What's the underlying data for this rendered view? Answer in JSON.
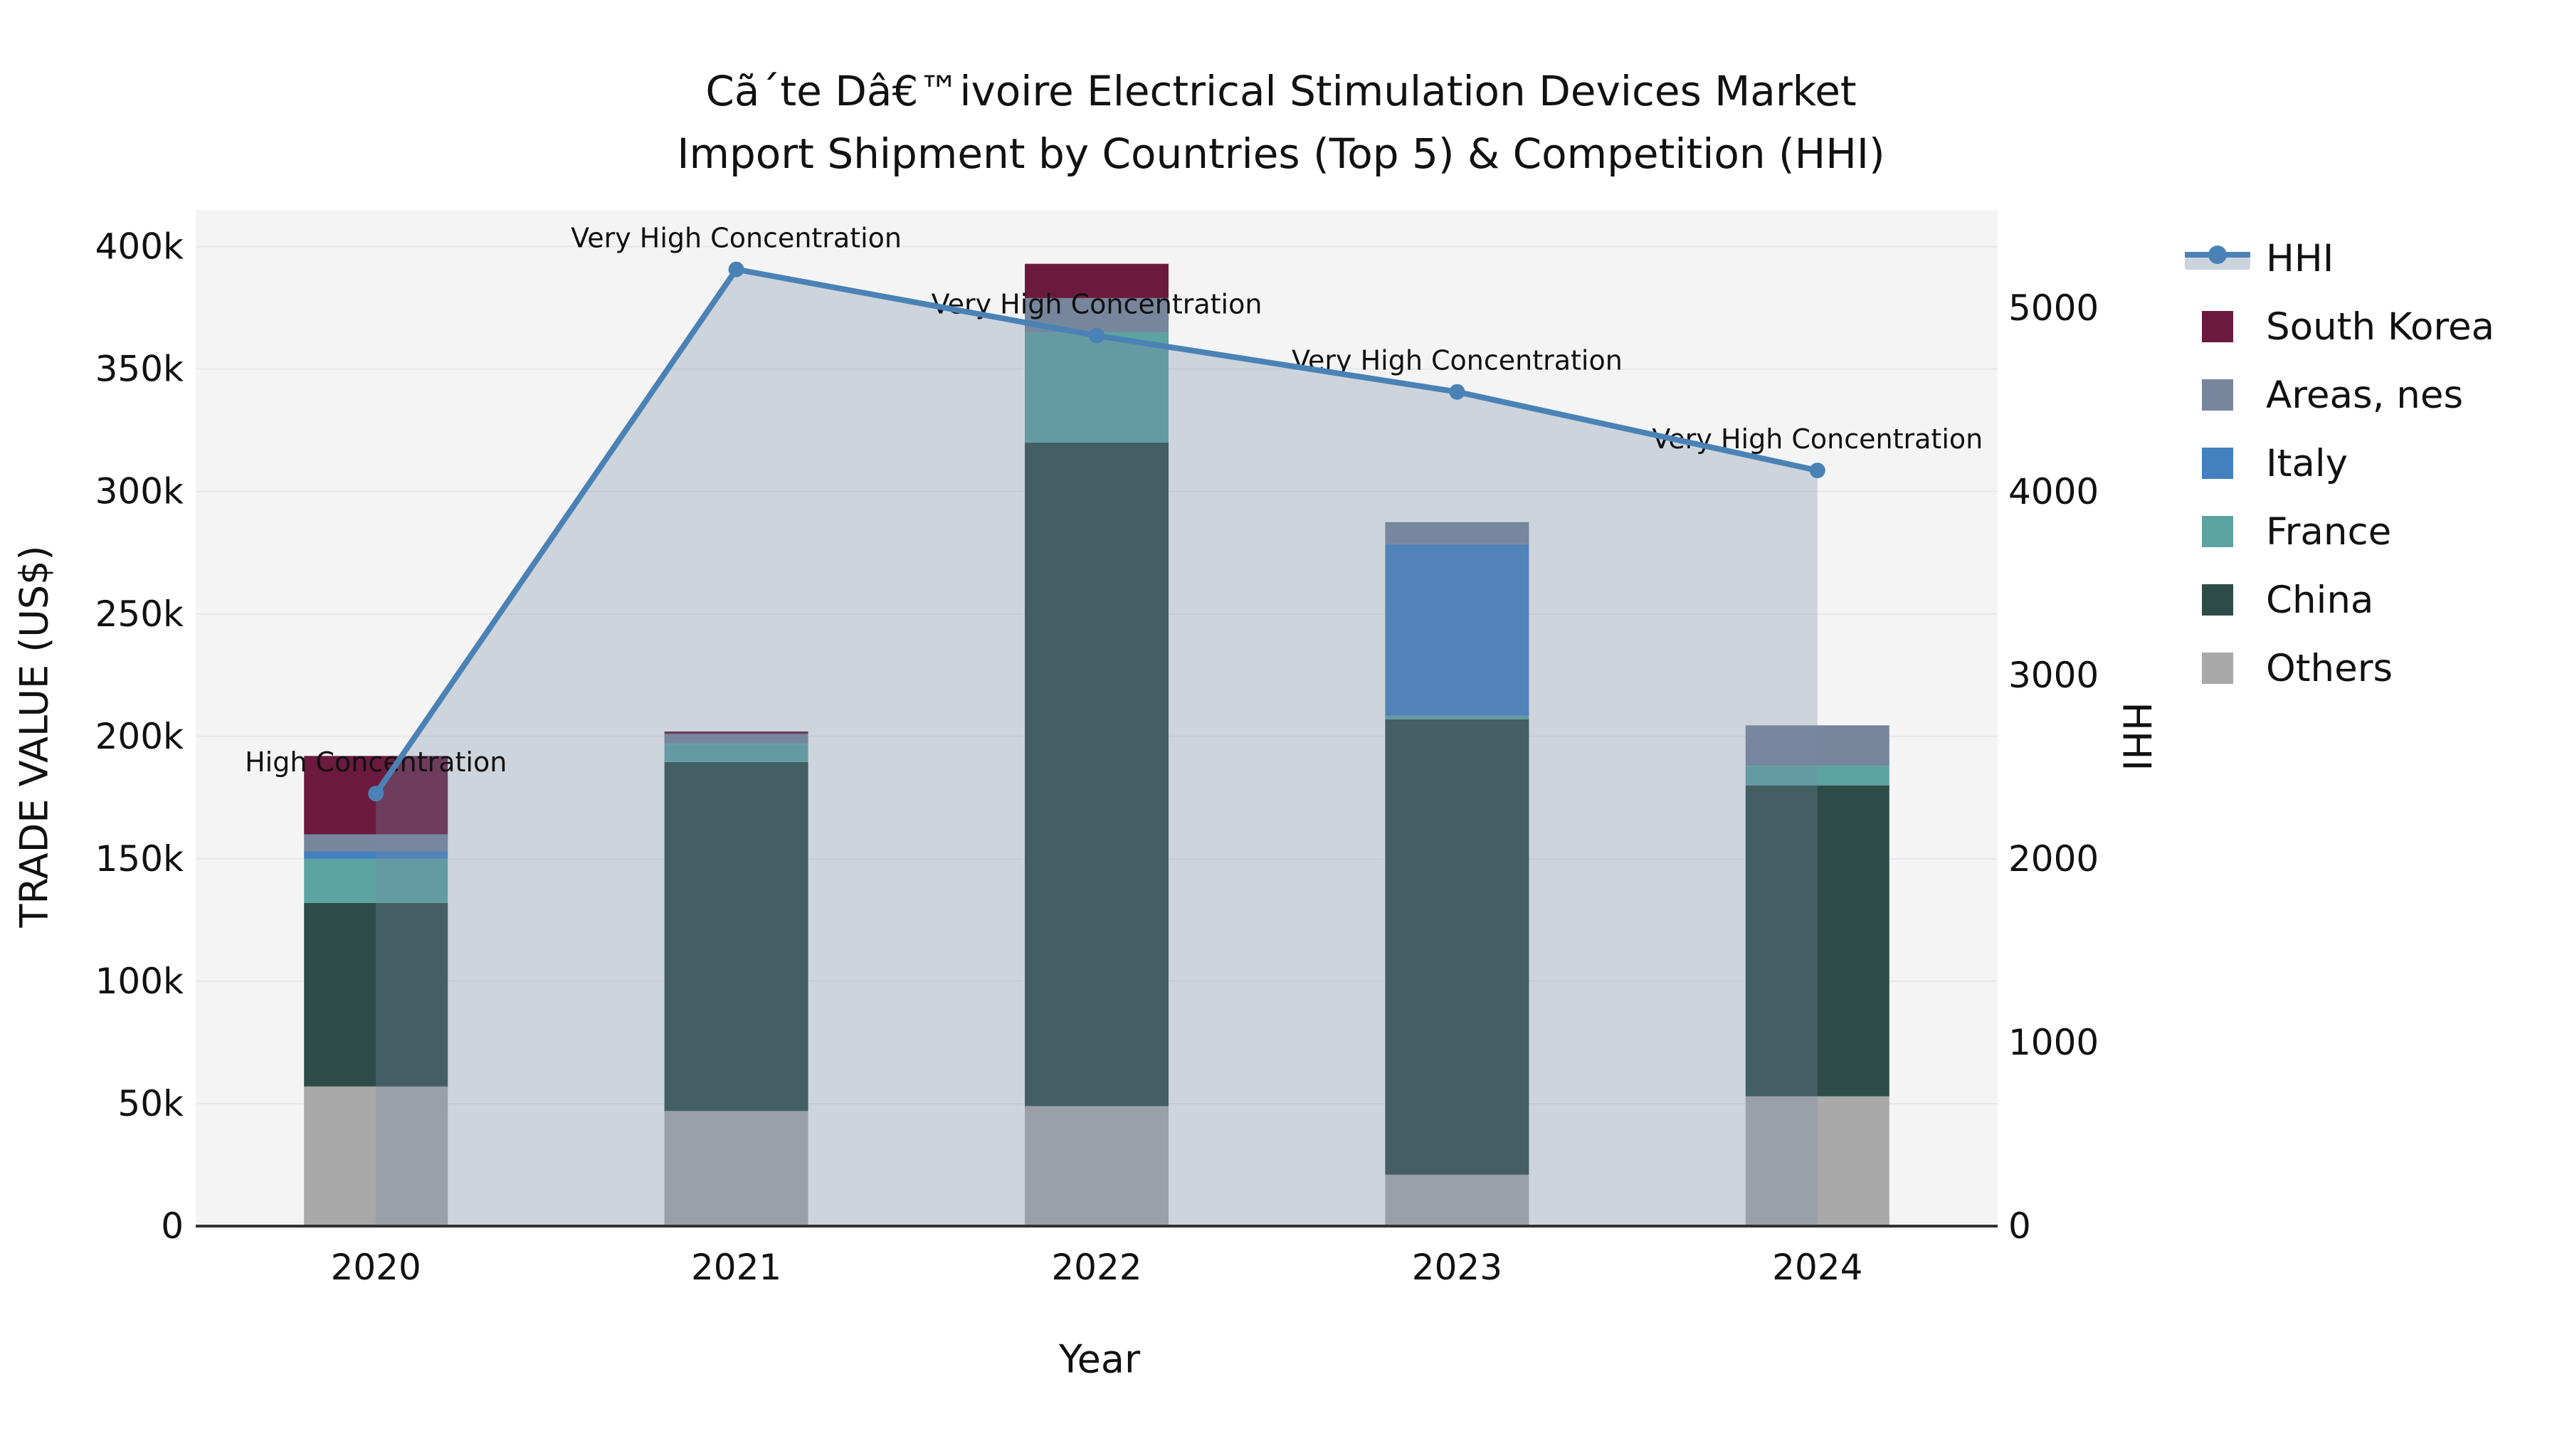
{
  "title": {
    "line1": "Cã´te Dâ€™ivoire Electrical Stimulation Devices Market",
    "line2": "Import Shipment by Countries (Top 5) & Competition (HHI)"
  },
  "chart_data": {
    "type": "bar",
    "subtype": "stacked-bars-with-line-and-area",
    "categories": [
      "2020",
      "2021",
      "2022",
      "2023",
      "2024"
    ],
    "bar_series": [
      {
        "name": "Others",
        "color": "#a9a9a9",
        "values": [
          57000,
          47000,
          49000,
          21000,
          53000
        ]
      },
      {
        "name": "China",
        "color": "#2d4c48",
        "values": [
          75000,
          142500,
          271000,
          186000,
          127000
        ]
      },
      {
        "name": "France",
        "color": "#5ca3a2",
        "values": [
          18000,
          7500,
          45000,
          1500,
          8000
        ]
      },
      {
        "name": "Italy",
        "color": "#4280c0",
        "values": [
          3000,
          0,
          0,
          70000,
          0
        ]
      },
      {
        "name": "Areas, nes",
        "color": "#76869c",
        "values": [
          7000,
          4000,
          14000,
          9000,
          16500
        ]
      },
      {
        "name": "South Korea",
        "color": "#6b1a3e",
        "values": [
          32000,
          1000,
          14000,
          0,
          0
        ]
      }
    ],
    "bar_totals": [
      192000,
      202000,
      393000,
      287500,
      204500
    ],
    "line_series": {
      "name": "HHI",
      "color": "#4a82b6",
      "area_fill": "rgba(120,138,165,0.30)",
      "values": [
        2356,
        5211,
        4850,
        4544,
        4116
      ]
    },
    "annotations": [
      "High Concentration",
      "Very High Concentration",
      "Very High Concentration",
      "Very High Concentration",
      "Very High Concentration"
    ],
    "axes": {
      "left": {
        "title": "TRADE VALUE (US$)",
        "range": [
          0,
          415000
        ],
        "ticks": [
          0,
          50000,
          100000,
          150000,
          200000,
          250000,
          300000,
          350000,
          400000
        ],
        "tick_labels": [
          "0",
          "50k",
          "100k",
          "150k",
          "200k",
          "250k",
          "300k",
          "350k",
          "400k"
        ]
      },
      "right": {
        "title": "HHI",
        "range": [
          0,
          5535
        ],
        "ticks": [
          0,
          1000,
          2000,
          3000,
          4000,
          5000
        ],
        "tick_labels": [
          "0",
          "1000",
          "2000",
          "3000",
          "4000",
          "5000"
        ]
      },
      "x": {
        "title": "Year"
      }
    },
    "style": {
      "plot_bg": "#f4f4f4",
      "gridline": "#e7e7e8",
      "axis_line": "#333333",
      "legend_band": "#cdd3dc"
    }
  },
  "legend": {
    "items": [
      {
        "label": "HHI",
        "type": "line"
      },
      {
        "label": "South Korea",
        "type": "square"
      },
      {
        "label": "Areas, nes",
        "type": "square"
      },
      {
        "label": "Italy",
        "type": "square"
      },
      {
        "label": "France",
        "type": "square"
      },
      {
        "label": "China",
        "type": "square"
      },
      {
        "label": "Others",
        "type": "square"
      }
    ]
  }
}
